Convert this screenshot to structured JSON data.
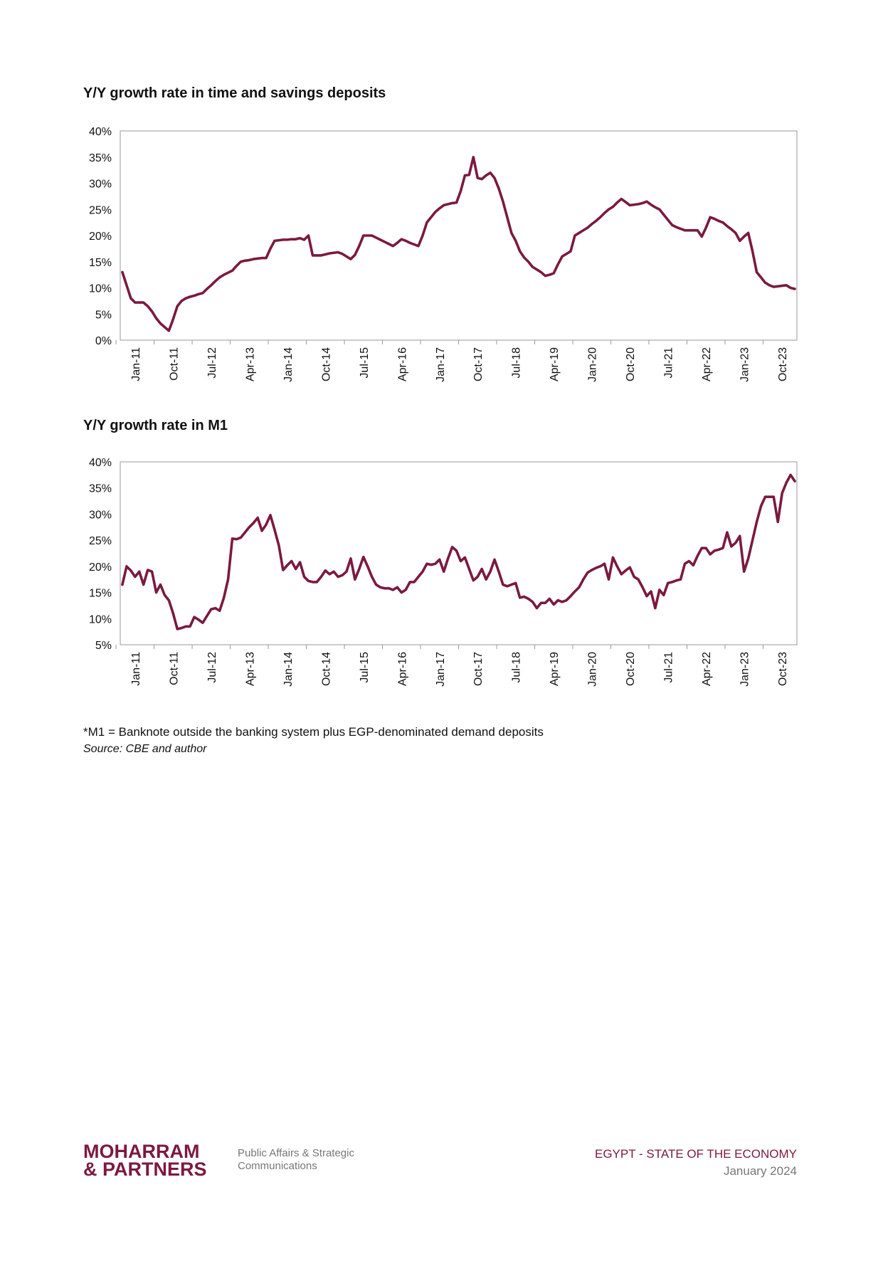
{
  "chart_data": [
    {
      "type": "line",
      "title": "Y/Y growth rate in time and savings deposits",
      "categories": [
        null,
        null,
        null,
        "Jan-11",
        null,
        null,
        null,
        null,
        null,
        null,
        null,
        null,
        "Oct-11",
        null,
        null,
        null,
        null,
        null,
        null,
        null,
        null,
        "Jul-12",
        null,
        null,
        null,
        null,
        null,
        null,
        null,
        null,
        "Apr-13",
        null,
        null,
        null,
        null,
        null,
        null,
        null,
        null,
        "Jan-14",
        null,
        null,
        null,
        null,
        null,
        null,
        null,
        null,
        "Oct-14",
        null,
        null,
        null,
        null,
        null,
        null,
        null,
        null,
        "Jul-15",
        null,
        null,
        null,
        null,
        null,
        null,
        null,
        null,
        "Apr-16",
        null,
        null,
        null,
        null,
        null,
        null,
        null,
        null,
        "Jan-17",
        null,
        null,
        null,
        null,
        null,
        null,
        null,
        null,
        "Oct-17",
        null,
        null,
        null,
        null,
        null,
        null,
        null,
        null,
        "Jul-18",
        null,
        null,
        null,
        null,
        null,
        null,
        null,
        null,
        "Apr-19",
        null,
        null,
        null,
        null,
        null,
        null,
        null,
        null,
        "Jan-20",
        null,
        null,
        null,
        null,
        null,
        null,
        null,
        null,
        "Oct-20",
        null,
        null,
        null,
        null,
        null,
        null,
        null,
        null,
        "Jul-21",
        null,
        null,
        null,
        null,
        null,
        null,
        null,
        null,
        "Apr-22",
        null,
        null,
        null,
        null,
        null,
        null,
        null,
        null,
        "Jan-23",
        null,
        null,
        null,
        null,
        null,
        null,
        null,
        null,
        "Oct-23",
        null,
        null,
        null
      ],
      "series": [
        {
          "color": "#7b1a3e",
          "values": [
            13,
            10.5,
            8,
            7.2,
            7.2,
            7.2,
            6.5,
            5.5,
            4.2,
            3.2,
            2.5,
            1.8,
            4,
            6.5,
            7.5,
            8,
            8.3,
            8.5,
            8.8,
            9,
            9.8,
            10.5,
            11.3,
            12,
            12.5,
            12.9,
            13.3,
            14.2,
            15,
            15.2,
            15.3,
            15.5,
            15.6,
            15.7,
            15.7,
            17.5,
            19,
            19.1,
            19.2,
            19.2,
            19.3,
            19.3,
            19.5,
            19.2,
            20,
            16.2,
            16.2,
            16.2,
            16.4,
            16.6,
            16.7,
            16.8,
            16.5,
            16,
            15.5,
            16.3,
            18,
            20,
            20,
            20,
            19.6,
            19.2,
            18.8,
            18.4,
            18,
            18.6,
            19.3,
            19,
            18.6,
            18.3,
            18,
            20,
            22.5,
            23.5,
            24.5,
            25.2,
            25.8,
            26,
            26.2,
            26.3,
            28.5,
            31.5,
            31.6,
            35,
            31,
            30.8,
            31.5,
            32,
            31,
            29,
            26.5,
            23.5,
            20.5,
            19,
            17,
            15.8,
            15,
            14,
            13.5,
            13,
            12.3,
            12.5,
            12.8,
            14.5,
            16,
            16.5,
            17,
            20,
            20.5,
            21,
            21.5,
            22.2,
            22.8,
            23.5,
            24.3,
            25,
            25.5,
            26.3,
            27,
            26.4,
            25.8,
            25.9,
            26,
            26.2,
            26.5,
            25.9,
            25.4,
            25,
            24,
            23,
            22,
            21.6,
            21.3,
            21,
            21,
            21,
            21,
            19.8,
            21.5,
            23.5,
            23.2,
            22.8,
            22.5,
            21.8,
            21.2,
            20.5,
            19,
            19.8,
            20.5,
            17,
            13,
            12,
            11,
            10.5,
            10.2,
            10.3,
            10.4,
            10.5,
            10,
            9.8
          ]
        }
      ],
      "ylim": [
        0,
        40
      ],
      "yticks": [
        {
          "value": 0,
          "label": "0%"
        },
        {
          "value": 5,
          "label": "5%"
        },
        {
          "value": 10,
          "label": "10%"
        },
        {
          "value": 15,
          "label": "15%"
        },
        {
          "value": 20,
          "label": "20%"
        },
        {
          "value": 25,
          "label": "25%"
        },
        {
          "value": 30,
          "label": "30%"
        },
        {
          "value": 35,
          "label": "35%"
        },
        {
          "value": 40,
          "label": "40%"
        }
      ],
      "grid": false
    },
    {
      "type": "line",
      "title": "Y/Y growth rate in M1",
      "categories": [
        null,
        null,
        null,
        "Jan-11",
        null,
        null,
        null,
        null,
        null,
        null,
        null,
        null,
        "Oct-11",
        null,
        null,
        null,
        null,
        null,
        null,
        null,
        null,
        "Jul-12",
        null,
        null,
        null,
        null,
        null,
        null,
        null,
        null,
        "Apr-13",
        null,
        null,
        null,
        null,
        null,
        null,
        null,
        null,
        "Jan-14",
        null,
        null,
        null,
        null,
        null,
        null,
        null,
        null,
        "Oct-14",
        null,
        null,
        null,
        null,
        null,
        null,
        null,
        null,
        "Jul-15",
        null,
        null,
        null,
        null,
        null,
        null,
        null,
        null,
        "Apr-16",
        null,
        null,
        null,
        null,
        null,
        null,
        null,
        null,
        "Jan-17",
        null,
        null,
        null,
        null,
        null,
        null,
        null,
        null,
        "Oct-17",
        null,
        null,
        null,
        null,
        null,
        null,
        null,
        null,
        "Jul-18",
        null,
        null,
        null,
        null,
        null,
        null,
        null,
        null,
        "Apr-19",
        null,
        null,
        null,
        null,
        null,
        null,
        null,
        null,
        "Jan-20",
        null,
        null,
        null,
        null,
        null,
        null,
        null,
        null,
        "Oct-20",
        null,
        null,
        null,
        null,
        null,
        null,
        null,
        null,
        "Jul-21",
        null,
        null,
        null,
        null,
        null,
        null,
        null,
        null,
        "Apr-22",
        null,
        null,
        null,
        null,
        null,
        null,
        null,
        null,
        "Jan-23",
        null,
        null,
        null,
        null,
        null,
        null,
        null,
        null,
        "Oct-23",
        null,
        null,
        null
      ],
      "series": [
        {
          "color": "#7b1a3e",
          "values": [
            16.5,
            20,
            19.2,
            18,
            19,
            16.5,
            19.3,
            19,
            15,
            16.5,
            14.5,
            13.5,
            11,
            8,
            8.2,
            8.5,
            8.5,
            10.3,
            9.8,
            9.2,
            10.5,
            11.8,
            12,
            11.5,
            14,
            17.5,
            25.3,
            25.2,
            25.5,
            26.5,
            27.5,
            28.3,
            29.3,
            26.8,
            28,
            29.8,
            27,
            24,
            19.3,
            20.2,
            21,
            19.5,
            20.8,
            18,
            17.2,
            17,
            17,
            18,
            19.2,
            18.5,
            19,
            18,
            18.3,
            19,
            21.5,
            17.5,
            19.5,
            21.8,
            20,
            18,
            16.5,
            16,
            15.8,
            15.8,
            15.5,
            16,
            15,
            15.5,
            17,
            17,
            18,
            19,
            20.5,
            20.3,
            20.5,
            21.3,
            19,
            21.5,
            23.7,
            23,
            21,
            21.7,
            19.5,
            17.3,
            18,
            19.5,
            17.5,
            19,
            21.3,
            19,
            16.5,
            16.2,
            16.5,
            16.8,
            14,
            14.2,
            13.8,
            13.2,
            12,
            13,
            13,
            13.8,
            12.7,
            13.5,
            13.2,
            13.5,
            14.3,
            15.2,
            16,
            17.5,
            18.8,
            19.3,
            19.7,
            20,
            20.5,
            17.5,
            21.7,
            20,
            18.5,
            19.2,
            19.8,
            18,
            17.5,
            16,
            14.3,
            15.2,
            12,
            15.5,
            14.5,
            16.8,
            17,
            17.3,
            17.5,
            20.5,
            21,
            20.2,
            22,
            23.5,
            23.5,
            22.3,
            23,
            23.2,
            23.5,
            26.5,
            23.8,
            24.5,
            25.8,
            19,
            21.5,
            25,
            28.5,
            31.5,
            33.3,
            33.3,
            33.3,
            28.5,
            34,
            36,
            37.5,
            36.3
          ]
        }
      ],
      "ylim": [
        5,
        40
      ],
      "yticks": [
        {
          "value": 5,
          "label": "5%"
        },
        {
          "value": 10,
          "label": "10%"
        },
        {
          "value": 15,
          "label": "15%"
        },
        {
          "value": 20,
          "label": "20%"
        },
        {
          "value": 25,
          "label": "25%"
        },
        {
          "value": 30,
          "label": "30%"
        },
        {
          "value": 35,
          "label": "35%"
        },
        {
          "value": 40,
          "label": "40%"
        }
      ],
      "grid": false
    }
  ],
  "notes": {
    "footnote": "*M1 = Banknote outside the banking system plus EGP-denominated demand deposits",
    "source": "Source: CBE and author"
  },
  "footer": {
    "logo_line1": "MOHARRAM",
    "logo_line2": "& PARTNERS",
    "tagline_line1": "Public Affairs & Strategic",
    "tagline_line2": "Communications",
    "report_title": "EGYPT - STATE OF THE ECONOMY",
    "report_date": "January 2024"
  }
}
